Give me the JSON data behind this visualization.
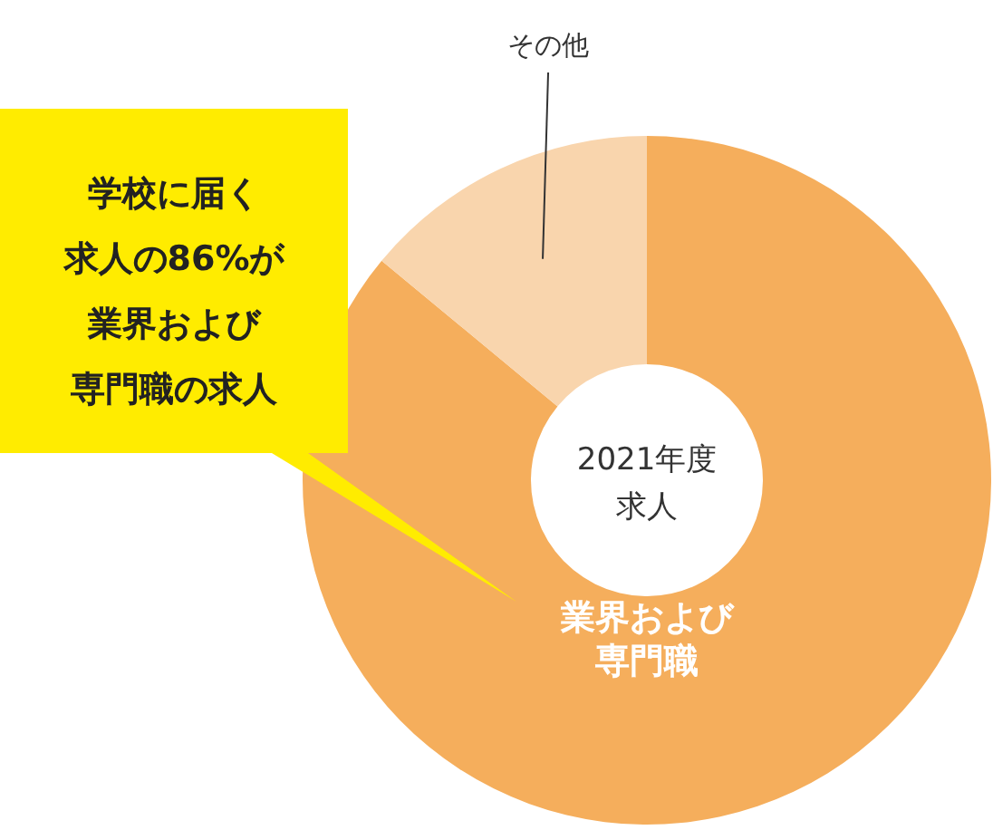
{
  "chart_data": {
    "type": "donut",
    "title": "2021年度求人",
    "categories": [
      "業界および専門職",
      "その他"
    ],
    "values": [
      86,
      14
    ],
    "colors": [
      "#f5ae5c",
      "#f9d5ad"
    ],
    "annotations": [
      "学校に届く求人の86%が業界および専門職の求人"
    ]
  }
}
